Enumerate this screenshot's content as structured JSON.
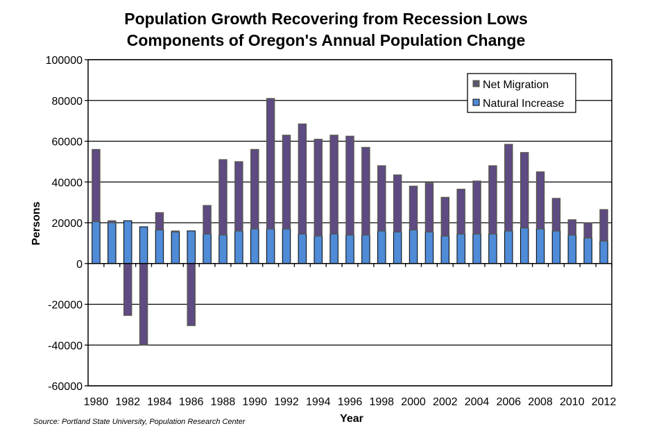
{
  "chart_data": {
    "type": "bar",
    "stacked": true,
    "title": "Population Growth Recovering from Recession Lows",
    "subtitle": "Components of Oregon's Annual Population Change",
    "xlabel": "Year",
    "ylabel": "Persons",
    "ylim": [
      -60000,
      100000
    ],
    "yticks": [
      100000,
      80000,
      60000,
      40000,
      20000,
      0,
      -20000,
      -40000,
      -60000
    ],
    "grid": true,
    "legend": "top-right",
    "source": "Source: Portland State University, Population Research Center",
    "categories": [
      1980,
      1981,
      1982,
      1983,
      1984,
      1985,
      1986,
      1987,
      1988,
      1989,
      1990,
      1991,
      1992,
      1993,
      1994,
      1995,
      1996,
      1997,
      1998,
      1999,
      2000,
      2001,
      2002,
      2003,
      2004,
      2005,
      2006,
      2007,
      2008,
      2009,
      2010,
      2011,
      2012
    ],
    "series": [
      {
        "name": "Natural Increase",
        "color": "#4f8bd6",
        "values": [
          20500,
          20000,
          21000,
          18000,
          16500,
          15500,
          16000,
          14500,
          14000,
          16000,
          17000,
          17000,
          17000,
          14500,
          13500,
          14500,
          14000,
          14000,
          16000,
          15500,
          16500,
          15500,
          13500,
          14500,
          14500,
          14500,
          16000,
          17500,
          17000,
          16000,
          14000,
          12500,
          11000
        ]
      },
      {
        "name": "Net Migration",
        "color": "#5e4b82",
        "values": [
          35500,
          1000,
          -25500,
          -40000,
          8500,
          500,
          -30500,
          14000,
          37000,
          34000,
          39000,
          64000,
          46000,
          54000,
          47500,
          48500,
          48500,
          43000,
          32000,
          28000,
          21500,
          24000,
          19000,
          22000,
          26000,
          33500,
          42500,
          37000,
          28000,
          16000,
          7500,
          7500,
          15500
        ]
      }
    ]
  }
}
